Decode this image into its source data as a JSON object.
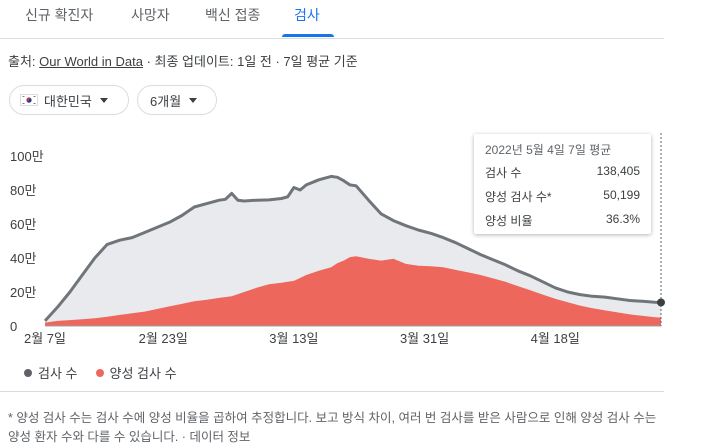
{
  "tabs": [
    {
      "label": "신규 확진자"
    },
    {
      "label": "사망자"
    },
    {
      "label": "백신 접종"
    },
    {
      "label": "검사"
    }
  ],
  "source": {
    "prefix": "출처: ",
    "link": "Our World in Data",
    "suffix": " · 최종 업데이트: 1일 전 · 7일 평균 기준"
  },
  "filters": {
    "country": "대한민국",
    "period": "6개월"
  },
  "tooltip": {
    "title": "2022년 5월 4일 7일 평균",
    "rows": [
      {
        "label": "검사 수",
        "value": "138,405"
      },
      {
        "label": "양성 검사 수*",
        "value": "50,199"
      },
      {
        "label": "양성 비율",
        "value": "36.3%"
      }
    ]
  },
  "legend": {
    "tests": "검사 수",
    "positive": "양성 검사 수"
  },
  "footnote": "* 양성 검사 수는 검사 수에 양성 비율을 곱하여 추정합니다. 보고 방식 차이, 여러 번 검사를 받은 사람으로 인해 양성 검사 수는 양성 환자 수와 다를 수 있습니다. · 데이터 정보",
  "colors": {
    "accent": "#1a73e8",
    "tests_line": "#70757a",
    "tests_fill": "#e8eaed",
    "positive_fill": "#ee675c"
  },
  "chart_data": {
    "type": "area",
    "x_ticks": [
      "2월 7일",
      "2월 23일",
      "3월 13일",
      "3월 31일",
      "4월 18일"
    ],
    "y_ticks": [
      "0",
      "20만",
      "40만",
      "60만",
      "80만",
      "100만"
    ],
    "ylim": [
      0,
      1000000
    ],
    "x_range_days": [
      0,
      86
    ],
    "series": [
      {
        "name": "검사 수",
        "points": [
          [
            0,
            30000
          ],
          [
            2,
            110000
          ],
          [
            4,
            200000
          ],
          [
            6,
            300000
          ],
          [
            8,
            400000
          ],
          [
            10,
            480000
          ],
          [
            12,
            505000
          ],
          [
            14,
            520000
          ],
          [
            16,
            550000
          ],
          [
            18,
            580000
          ],
          [
            20,
            610000
          ],
          [
            22,
            650000
          ],
          [
            24,
            700000
          ],
          [
            26,
            720000
          ],
          [
            28,
            740000
          ],
          [
            29,
            745000
          ],
          [
            30,
            780000
          ],
          [
            31,
            740000
          ],
          [
            32,
            735000
          ],
          [
            34,
            740000
          ],
          [
            36,
            742000
          ],
          [
            38,
            750000
          ],
          [
            39,
            760000
          ],
          [
            40,
            815000
          ],
          [
            41,
            800000
          ],
          [
            42,
            830000
          ],
          [
            44,
            860000
          ],
          [
            46,
            880000
          ],
          [
            47,
            875000
          ],
          [
            48,
            855000
          ],
          [
            49,
            830000
          ],
          [
            50,
            825000
          ],
          [
            52,
            740000
          ],
          [
            54,
            660000
          ],
          [
            56,
            620000
          ],
          [
            58,
            590000
          ],
          [
            60,
            565000
          ],
          [
            62,
            545000
          ],
          [
            64,
            520000
          ],
          [
            66,
            490000
          ],
          [
            68,
            455000
          ],
          [
            70,
            420000
          ],
          [
            72,
            390000
          ],
          [
            74,
            360000
          ],
          [
            76,
            325000
          ],
          [
            78,
            295000
          ],
          [
            80,
            260000
          ],
          [
            82,
            225000
          ],
          [
            84,
            200000
          ],
          [
            86,
            185000
          ],
          [
            88,
            175000
          ],
          [
            90,
            170000
          ],
          [
            92,
            160000
          ],
          [
            94,
            150000
          ],
          [
            96,
            145000
          ],
          [
            98,
            140000
          ],
          [
            99,
            138405
          ]
        ]
      },
      {
        "name": "양성 검사 수",
        "points": [
          [
            0,
            20000
          ],
          [
            2,
            30000
          ],
          [
            4,
            35000
          ],
          [
            6,
            40000
          ],
          [
            8,
            45000
          ],
          [
            10,
            55000
          ],
          [
            12,
            65000
          ],
          [
            14,
            75000
          ],
          [
            16,
            85000
          ],
          [
            18,
            100000
          ],
          [
            20,
            115000
          ],
          [
            22,
            130000
          ],
          [
            24,
            145000
          ],
          [
            26,
            155000
          ],
          [
            28,
            165000
          ],
          [
            30,
            175000
          ],
          [
            32,
            200000
          ],
          [
            34,
            225000
          ],
          [
            36,
            245000
          ],
          [
            38,
            255000
          ],
          [
            39,
            260000
          ],
          [
            40,
            265000
          ],
          [
            42,
            300000
          ],
          [
            44,
            325000
          ],
          [
            46,
            345000
          ],
          [
            47,
            370000
          ],
          [
            48,
            385000
          ],
          [
            49,
            405000
          ],
          [
            50,
            410000
          ],
          [
            52,
            395000
          ],
          [
            54,
            385000
          ],
          [
            55,
            390000
          ],
          [
            56,
            395000
          ],
          [
            57,
            380000
          ],
          [
            58,
            365000
          ],
          [
            60,
            355000
          ],
          [
            62,
            352000
          ],
          [
            64,
            345000
          ],
          [
            66,
            330000
          ],
          [
            68,
            315000
          ],
          [
            70,
            300000
          ],
          [
            72,
            280000
          ],
          [
            74,
            260000
          ],
          [
            76,
            235000
          ],
          [
            78,
            210000
          ],
          [
            80,
            185000
          ],
          [
            82,
            160000
          ],
          [
            84,
            140000
          ],
          [
            86,
            120000
          ],
          [
            88,
            105000
          ],
          [
            90,
            92000
          ],
          [
            92,
            80000
          ],
          [
            94,
            68000
          ],
          [
            96,
            60000
          ],
          [
            98,
            52000
          ],
          [
            99,
            50199
          ]
        ]
      }
    ],
    "grid": false,
    "legend_position": "bottom-left"
  }
}
